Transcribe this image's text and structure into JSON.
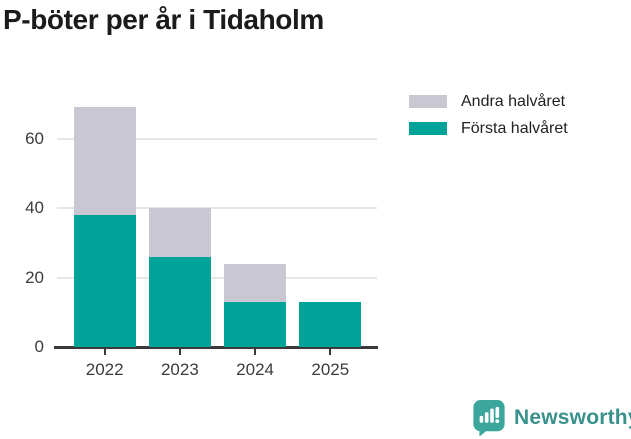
{
  "chart_data": {
    "type": "bar",
    "stacked": true,
    "title": "P-böter per år i Tidaholm",
    "categories": [
      "2022",
      "2023",
      "2024",
      "2025"
    ],
    "series": [
      {
        "name": "Första halvåret",
        "color": "#00a398",
        "values": [
          38,
          26,
          13,
          13
        ]
      },
      {
        "name": "Andra halvåret",
        "color": "#c9c8d2",
        "values": [
          31,
          14,
          11,
          0
        ]
      }
    ],
    "totals": [
      69,
      40,
      24,
      13
    ],
    "xlabel": "",
    "ylabel": "",
    "ylim": [
      0,
      70
    ],
    "yticks": [
      0,
      20,
      40,
      60
    ],
    "grid": true,
    "legend": [
      "Andra halvåret",
      "Första halvåret"
    ],
    "legend_position": "top-right"
  },
  "colors": {
    "first_half": "#00a398",
    "second_half": "#c9c8d2",
    "gridline": "#e6e6e9",
    "axis": "#3a3a3a",
    "brand_icon": "#3aa69c",
    "brand_text": "#3a918c"
  },
  "branding": {
    "logo_text": "Newsworthy",
    "logo_icon": "bar-chart-speech-bubble"
  }
}
